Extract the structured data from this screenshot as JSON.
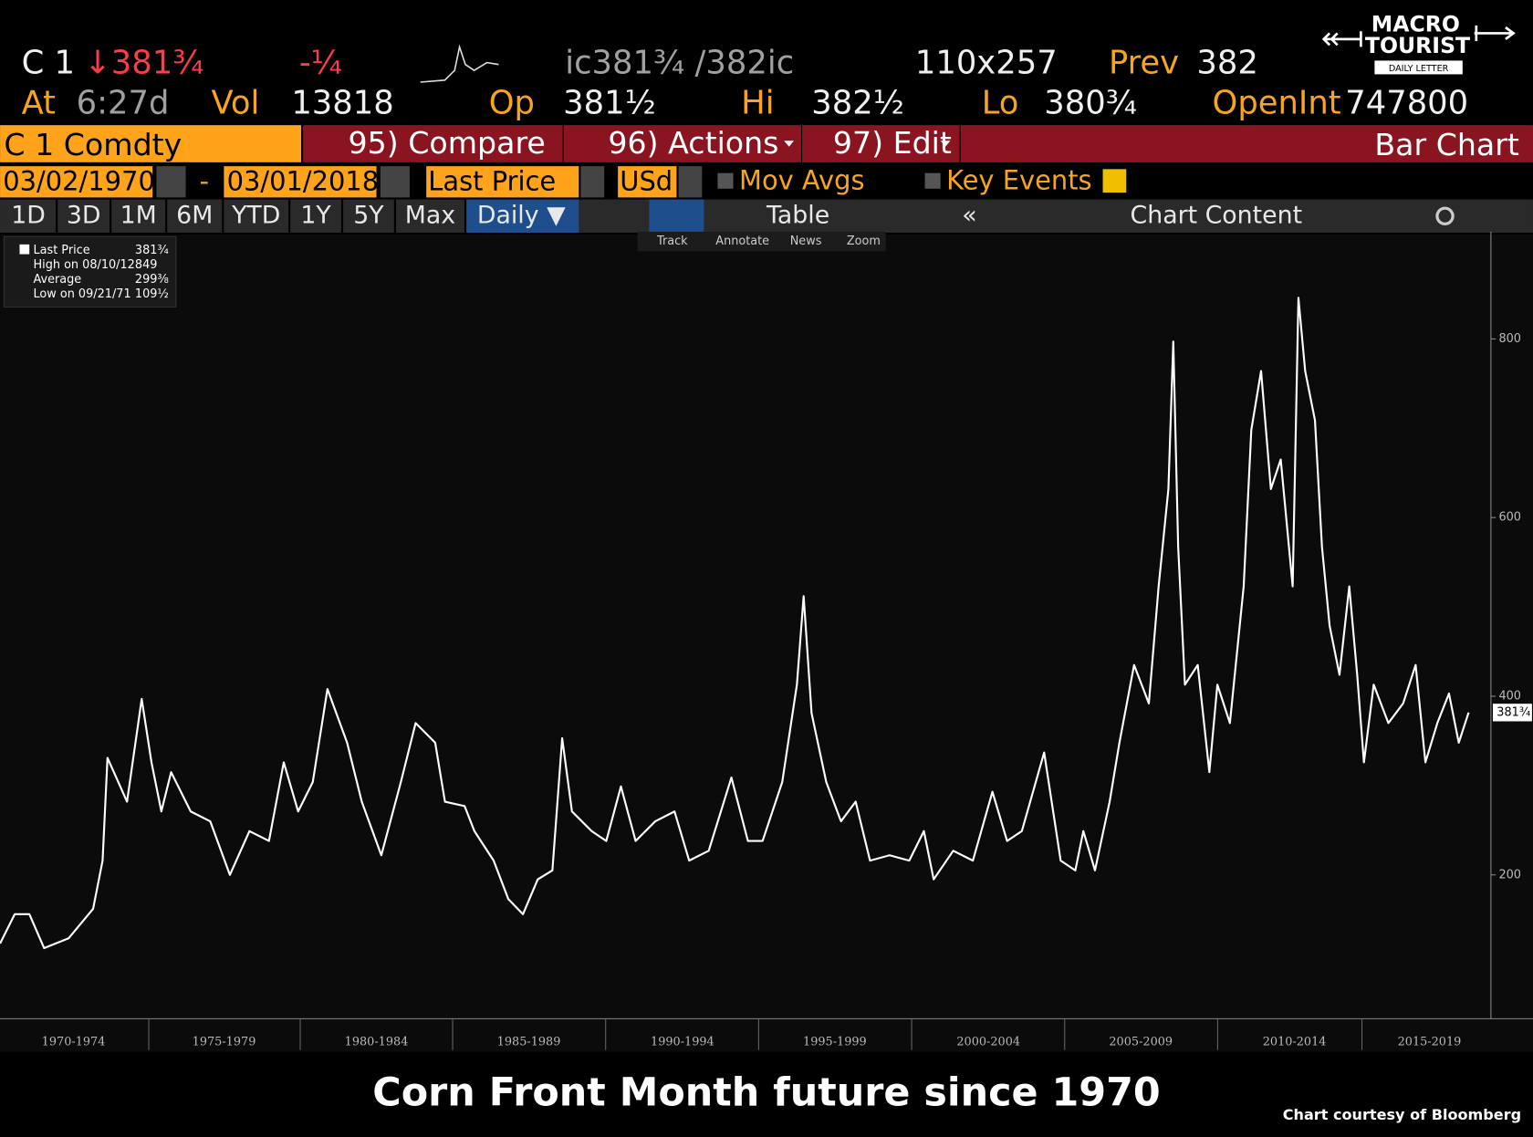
{
  "header": {
    "ticker": "C 1",
    "last": "↓381¾",
    "change": "-¼",
    "bidask": "ic381¾ /382ic",
    "size": "110x257",
    "prev_label": "Prev",
    "prev": "382",
    "at_label": "At",
    "time": "6:27d",
    "vol_label": "Vol",
    "vol": "13818",
    "op_label": "Op",
    "op": "381½",
    "hi_label": "Hi",
    "hi": "382½",
    "lo_label": "Lo",
    "lo": "380¾",
    "oi_label": "OpenInt",
    "oi": "747800"
  },
  "logo": {
    "line1": "MACRO",
    "line2": "TOURIST",
    "line3": "DAILY LETTER"
  },
  "menu": {
    "security": "C 1 Comdty",
    "compare": "95) Compare",
    "actions": "96) Actions",
    "edit": "97) Edit",
    "view": "Bar Chart"
  },
  "controls": {
    "start": "03/02/1970",
    "dash": "-",
    "end": "03/01/2018",
    "field": "Last Price",
    "currency": "USd",
    "mov_avgs": "Mov Avgs",
    "key_events": "Key Events"
  },
  "periods": [
    "1D",
    "3D",
    "1M",
    "6M",
    "YTD",
    "1Y",
    "5Y",
    "Max"
  ],
  "tabs": {
    "frequency": "Daily ▼",
    "table": "Table",
    "content": "Chart Content"
  },
  "tools": [
    "Track",
    "Annotate",
    "News",
    "Zoom"
  ],
  "chart_data": {
    "type": "line",
    "title": "Corn Front Month future since 1970",
    "source": "Chart courtesy of Bloomberg",
    "legend": [
      {
        "label": "Last Price",
        "value": "381¾"
      },
      {
        "label": "High on 08/10/12",
        "value": "849"
      },
      {
        "label": "Average",
        "value": "299⅜"
      },
      {
        "label": "Low on 09/21/71",
        "value": "109½"
      }
    ],
    "x": [
      1970.18,
      1970.66,
      1971.14,
      1971.62,
      1972.42,
      1973.22,
      1973.53,
      1973.69,
      1974.33,
      1974.81,
      1975.13,
      1975.45,
      1975.77,
      1976.41,
      1977.05,
      1977.69,
      1978.33,
      1978.97,
      1979.45,
      1979.92,
      1980.4,
      1980.88,
      1981.52,
      1982.0,
      1982.64,
      1983.28,
      1983.76,
      1984.4,
      1984.72,
      1985.36,
      1985.68,
      1986.31,
      1986.79,
      1987.27,
      1987.75,
      1988.23,
      1988.55,
      1988.87,
      1989.51,
      1989.99,
      1990.47,
      1990.95,
      1991.59,
      1992.22,
      1992.7,
      1993.34,
      1994.08,
      1994.62,
      1995.1,
      1995.74,
      1996.22,
      1996.44,
      1996.7,
      1997.18,
      1997.66,
      1998.14,
      1998.61,
      1999.25,
      1999.89,
      2000.37,
      2000.69,
      2001.33,
      2001.97,
      2002.61,
      2003.09,
      2003.57,
      2004.3,
      2004.84,
      2005.32,
      2005.58,
      2005.96,
      2006.44,
      2006.76,
      2007.24,
      2007.72,
      2008.04,
      2008.36,
      2008.52,
      2008.68,
      2008.9,
      2009.32,
      2009.7,
      2009.96,
      2010.37,
      2010.82,
      2011.07,
      2011.39,
      2011.71,
      2012.03,
      2012.42,
      2012.61,
      2012.83,
      2013.15,
      2013.38,
      2013.63,
      2013.95,
      2014.27,
      2014.53,
      2014.75,
      2015.07,
      2015.55,
      2016.03,
      2016.44,
      2016.76,
      2017.15,
      2017.53,
      2017.85,
      2018.17
    ],
    "series": [
      {
        "name": "Last Price",
        "color": "#ffffff",
        "values": [
          123,
          156,
          156,
          118,
          129,
          162,
          216,
          331,
          282,
          397,
          326,
          271,
          315,
          271,
          260,
          200,
          249,
          238,
          326,
          271,
          304,
          408,
          348,
          282,
          222,
          304,
          370,
          348,
          282,
          277,
          249,
          216,
          173,
          156,
          195,
          205,
          353,
          271,
          249,
          238,
          299,
          238,
          260,
          271,
          216,
          227,
          309,
          238,
          238,
          304,
          413,
          512,
          381,
          304,
          260,
          282,
          216,
          222,
          216,
          249,
          195,
          227,
          216,
          293,
          238,
          249,
          337,
          216,
          205,
          249,
          205,
          282,
          348,
          435,
          392,
          523,
          632,
          797,
          567,
          413,
          435,
          315,
          413,
          370,
          523,
          698,
          764,
          632,
          665,
          523,
          846,
          764,
          709,
          567,
          479,
          424,
          523,
          424,
          326,
          413,
          370,
          392,
          435,
          326,
          370,
          403,
          348,
          381.75
        ]
      }
    ],
    "xlim": [
      1970.18,
      2018.9
    ],
    "ylim": [
      39,
      920
    ],
    "xticks": [
      {
        "value": 1972.58,
        "label": "1970-1974"
      },
      {
        "value": 1977.5,
        "label": "1975-1979"
      },
      {
        "value": 1982.48,
        "label": "1980-1984"
      },
      {
        "value": 1987.46,
        "label": "1985-1989"
      },
      {
        "value": 1992.48,
        "label": "1990-1994"
      },
      {
        "value": 1997.46,
        "label": "1995-1999"
      },
      {
        "value": 2002.48,
        "label": "2000-2004"
      },
      {
        "value": 2007.46,
        "label": "2005-2009"
      },
      {
        "value": 2012.48,
        "label": "2010-2014"
      },
      {
        "value": 2016.89,
        "label": "2015-2019"
      }
    ],
    "yticks": [
      200,
      400,
      600,
      800
    ],
    "y_axis_side": "right"
  }
}
